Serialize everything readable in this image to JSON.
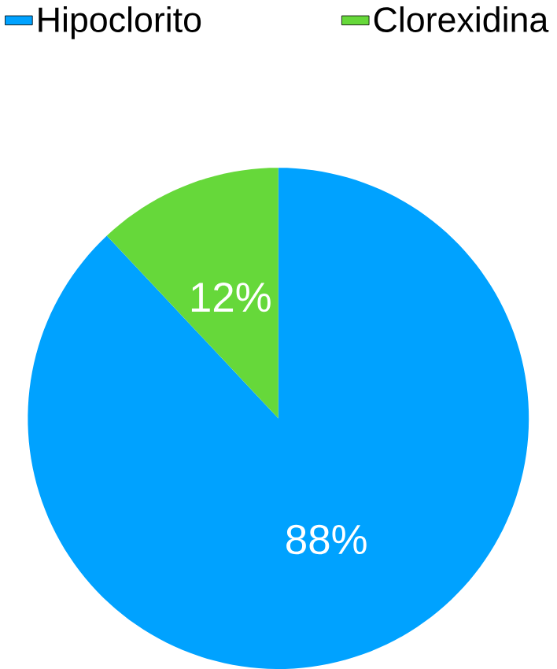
{
  "chart_data": {
    "type": "pie",
    "categories": [
      "Hipoclorito",
      "Clorexidina"
    ],
    "values": [
      88,
      12
    ],
    "colors": [
      "#00a2ff",
      "#66d83a"
    ],
    "data_labels": true,
    "value_labels": [
      "88%",
      "12%"
    ],
    "legend": "top"
  }
}
